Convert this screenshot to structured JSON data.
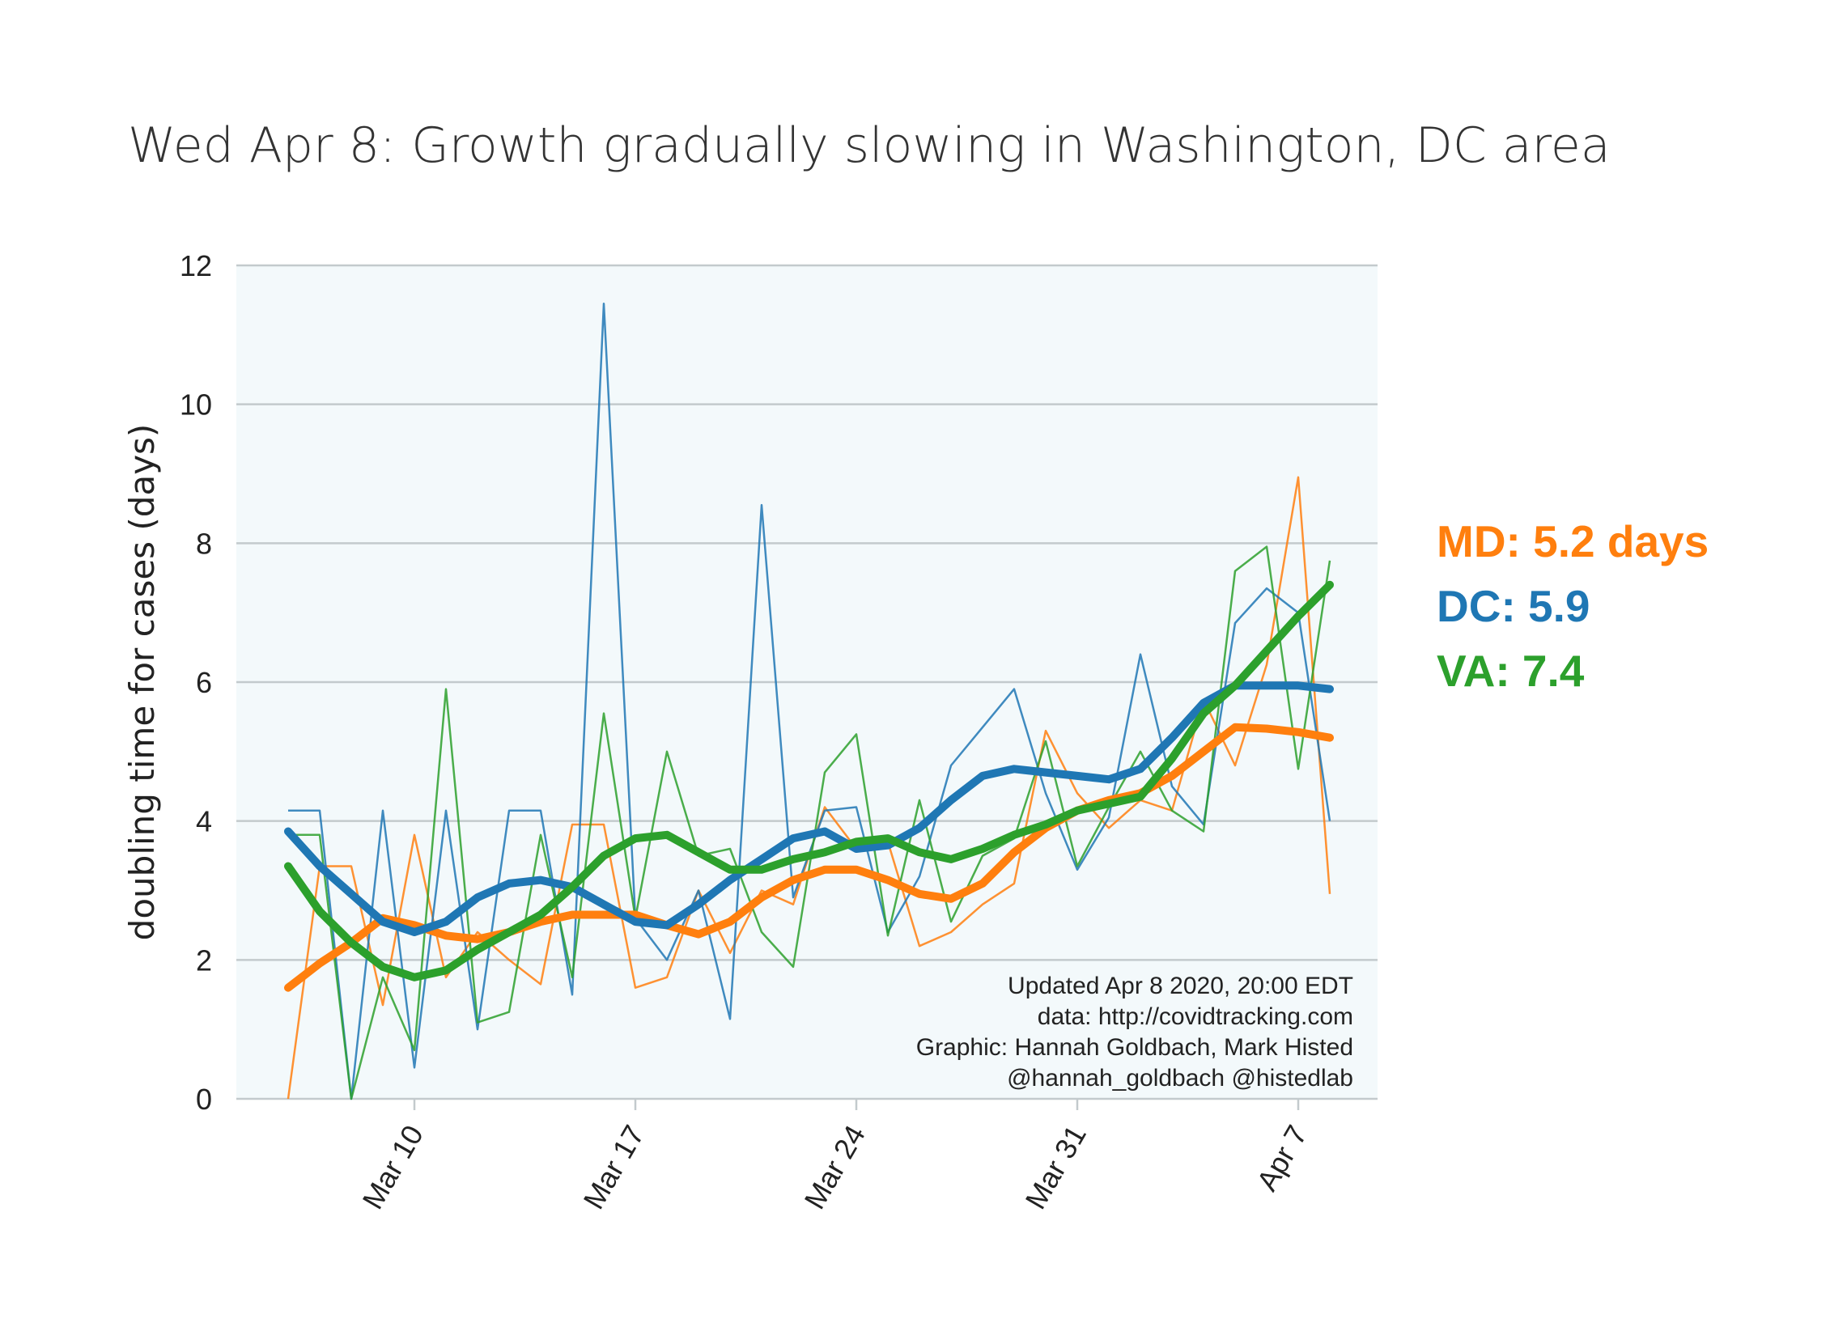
{
  "chart_data": {
    "type": "line",
    "title": "Wed Apr 8: Growth gradually slowing in Washington, DC area",
    "ylabel": "doubling time for cases (days)",
    "xlabel": "",
    "ylim": [
      0,
      12
    ],
    "yticks": [
      0,
      2,
      4,
      6,
      8,
      10,
      12
    ],
    "ytick_labels": [
      "0",
      "2",
      "4",
      "6",
      "8",
      "10",
      "12"
    ],
    "x_dates": [
      "Mar 6",
      "Mar 7",
      "Mar 8",
      "Mar 9",
      "Mar 10",
      "Mar 11",
      "Mar 12",
      "Mar 13",
      "Mar 14",
      "Mar 15",
      "Mar 16",
      "Mar 17",
      "Mar 18",
      "Mar 19",
      "Mar 20",
      "Mar 21",
      "Mar 22",
      "Mar 23",
      "Mar 24",
      "Mar 25",
      "Mar 26",
      "Mar 27",
      "Mar 28",
      "Mar 29",
      "Mar 30",
      "Mar 31",
      "Apr 1",
      "Apr 2",
      "Apr 3",
      "Apr 4",
      "Apr 5",
      "Apr 6",
      "Apr 7",
      "Apr 8"
    ],
    "xticks": [
      "Mar 10",
      "Mar 17",
      "Mar 24",
      "Mar 31",
      "Apr 7"
    ],
    "background": "#f3f9fb",
    "grid": "horizontal",
    "series": [
      {
        "name": "MD",
        "color": "#ff7f0e",
        "raw": [
          0.0,
          3.35,
          3.35,
          1.35,
          3.8,
          1.75,
          2.4,
          2.0,
          1.65,
          3.95,
          3.95,
          1.6,
          1.75,
          3.0,
          2.1,
          3.0,
          2.8,
          4.2,
          3.6,
          3.7,
          2.2,
          2.4,
          2.8,
          3.1,
          5.3,
          4.4,
          3.9,
          4.3,
          4.15,
          5.75,
          4.8,
          6.25,
          8.95,
          2.95
        ],
        "smooth": [
          1.6,
          1.95,
          2.25,
          2.6,
          2.5,
          2.35,
          2.3,
          2.4,
          2.55,
          2.65,
          2.65,
          2.65,
          2.5,
          2.37,
          2.55,
          2.9,
          3.15,
          3.3,
          3.3,
          3.15,
          2.95,
          2.88,
          3.1,
          3.55,
          3.9,
          4.15,
          4.3,
          4.4,
          4.65,
          5.0,
          5.35,
          5.33,
          5.28,
          5.2
        ]
      },
      {
        "name": "DC",
        "color": "#1f77b4",
        "raw": [
          4.15,
          4.15,
          0.0,
          4.15,
          0.45,
          4.15,
          1.0,
          4.15,
          4.15,
          1.5,
          11.45,
          2.6,
          2.0,
          3.0,
          1.15,
          8.55,
          2.9,
          4.15,
          4.2,
          2.4,
          3.2,
          4.8,
          5.35,
          5.9,
          4.4,
          3.3,
          4.05,
          6.4,
          4.5,
          3.95,
          6.85,
          7.35,
          7.0,
          4.0
        ],
        "smooth": [
          3.85,
          3.35,
          2.95,
          2.55,
          2.4,
          2.55,
          2.9,
          3.1,
          3.15,
          3.05,
          2.8,
          2.55,
          2.5,
          2.8,
          3.15,
          3.45,
          3.75,
          3.85,
          3.6,
          3.65,
          3.9,
          4.3,
          4.65,
          4.75,
          4.7,
          4.65,
          4.6,
          4.75,
          5.2,
          5.7,
          5.95,
          5.95,
          5.95,
          5.9
        ]
      },
      {
        "name": "VA",
        "color": "#2ca02c",
        "raw": [
          3.8,
          3.8,
          0.0,
          1.75,
          0.7,
          5.9,
          1.1,
          1.25,
          3.8,
          1.75,
          5.55,
          2.6,
          5.0,
          3.5,
          3.6,
          2.4,
          1.9,
          4.7,
          5.25,
          2.35,
          4.3,
          2.55,
          3.5,
          3.75,
          5.15,
          3.35,
          4.2,
          5.0,
          4.15,
          3.85,
          7.6,
          7.95,
          4.75,
          7.75
        ],
        "smooth": [
          3.35,
          2.7,
          2.25,
          1.9,
          1.75,
          1.85,
          2.15,
          2.4,
          2.65,
          3.05,
          3.5,
          3.75,
          3.8,
          3.55,
          3.3,
          3.3,
          3.45,
          3.55,
          3.7,
          3.75,
          3.55,
          3.45,
          3.6,
          3.8,
          3.95,
          4.15,
          4.25,
          4.35,
          4.9,
          5.55,
          5.95,
          6.45,
          6.95,
          7.4
        ]
      }
    ],
    "summaries": [
      {
        "text": "MD: 5.2 days",
        "color": "#ff7f0e"
      },
      {
        "text": "DC: 5.9",
        "color": "#1f77b4"
      },
      {
        "text": "VA: 7.4",
        "color": "#2ca02c"
      }
    ],
    "credits": [
      "Updated Apr 8 2020, 20:00 EDT",
      "data: http://covidtracking.com",
      "Graphic: Hannah Goldbach, Mark Histed",
      "@hannah_goldbach @histedlab"
    ]
  }
}
